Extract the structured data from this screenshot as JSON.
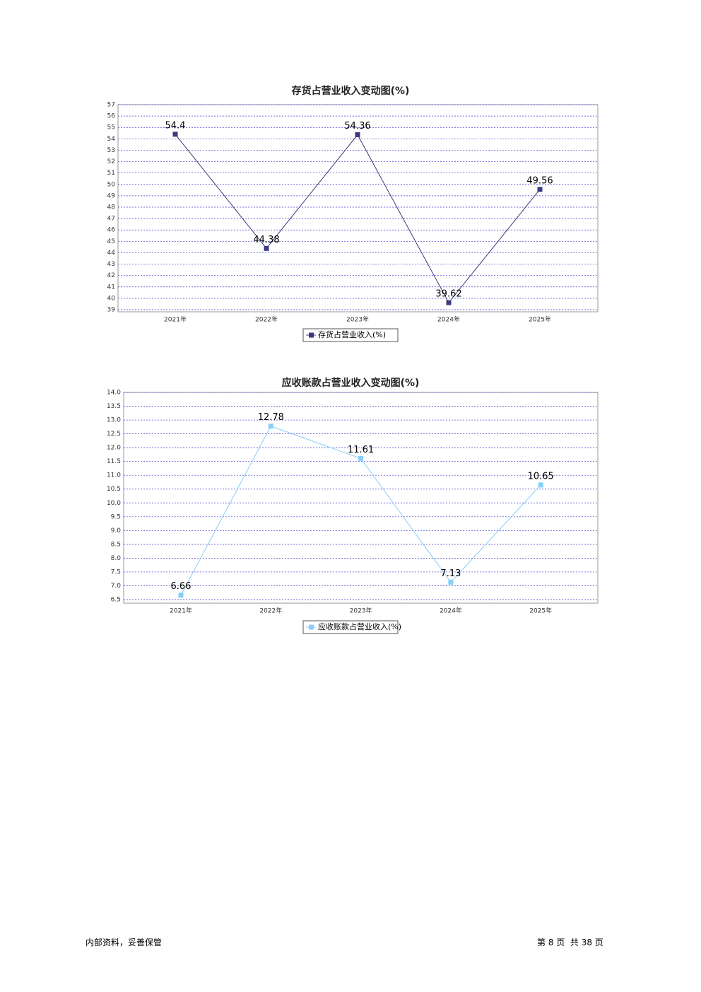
{
  "chart_data": [
    {
      "type": "line",
      "title": "存货占营业收入变动图(%)",
      "categories": [
        "2021年",
        "2022年",
        "2023年",
        "2024年",
        "2025年"
      ],
      "series": [
        {
          "name": "存货占营业收入(%)",
          "color": "#3b3a7e",
          "values": [
            54.4,
            44.38,
            54.36,
            39.62,
            49.56
          ]
        }
      ],
      "ylim": [
        39,
        57
      ],
      "yticks": [
        39,
        40,
        41,
        42,
        43,
        44,
        45,
        46,
        47,
        48,
        49,
        50,
        51,
        52,
        53,
        54,
        55,
        56,
        57
      ],
      "grid": true
    },
    {
      "type": "line",
      "title": "应收账款占营业收入变动图(%)",
      "categories": [
        "2021年",
        "2022年",
        "2023年",
        "2024年",
        "2025年"
      ],
      "series": [
        {
          "name": "应收账款占营业收入(%)",
          "color": "#87cefa",
          "values": [
            6.66,
            12.78,
            11.61,
            7.13,
            10.65
          ]
        }
      ],
      "ylim": [
        6.5,
        14.0
      ],
      "yticks": [
        6.5,
        {
          "value": 7,
          "label": "7.0"
        },
        7.5,
        {
          "value": 8,
          "label": "8.0"
        },
        8.5,
        {
          "value": 9,
          "label": "9.0"
        },
        9.5,
        {
          "value": 10,
          "label": "10.0"
        },
        10.5,
        {
          "value": 11,
          "label": "11.0"
        },
        11.5,
        {
          "value": 12,
          "label": "12.0"
        },
        12.5,
        {
          "value": 13,
          "label": "13.0"
        },
        13.5,
        {
          "value": 14,
          "label": "14.0"
        }
      ],
      "grid": true
    }
  ],
  "footer": {
    "left": "内部资料，妥善保管",
    "right": "第 8 页  共 38 页"
  }
}
